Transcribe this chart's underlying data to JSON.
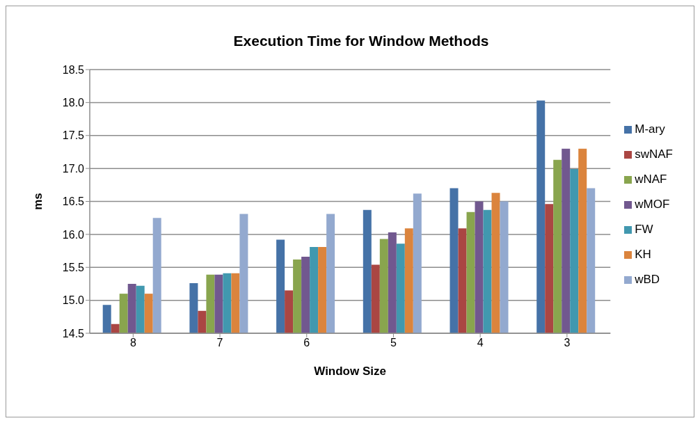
{
  "chart_data": {
    "type": "bar",
    "title": "Execution Time for Window Methods",
    "xlabel": "Window Size",
    "ylabel": "ms",
    "categories": [
      "8",
      "7",
      "6",
      "5",
      "4",
      "3"
    ],
    "series": [
      {
        "name": "M-ary",
        "color": "#4572a7",
        "values": [
          14.93,
          15.26,
          15.92,
          16.37,
          16.7,
          18.03
        ]
      },
      {
        "name": "swNAF",
        "color": "#aa4643",
        "values": [
          14.64,
          14.84,
          15.15,
          15.54,
          16.09,
          16.46
        ]
      },
      {
        "name": "wNAF",
        "color": "#89a54e",
        "values": [
          15.1,
          15.39,
          15.62,
          15.93,
          16.34,
          17.13
        ]
      },
      {
        "name": "wMOF",
        "color": "#71588f",
        "values": [
          15.25,
          15.39,
          15.66,
          16.03,
          16.5,
          17.3
        ]
      },
      {
        "name": "FW",
        "color": "#4198af",
        "values": [
          15.22,
          15.41,
          15.81,
          15.86,
          16.37,
          16.99
        ]
      },
      {
        "name": "KH",
        "color": "#db843d",
        "values": [
          15.1,
          15.41,
          15.81,
          16.09,
          16.63,
          17.3
        ]
      },
      {
        "name": "wBD",
        "color": "#93a9cf",
        "values": [
          16.25,
          16.31,
          16.31,
          16.62,
          16.5,
          16.7
        ]
      }
    ],
    "ylim": [
      14.5,
      18.5
    ],
    "yticks": [
      {
        "value": 14.5,
        "label": "14.5"
      },
      {
        "value": 15,
        "label": "15.0"
      },
      {
        "value": 15.5,
        "label": "15.5"
      },
      {
        "value": 16,
        "label": "16.0"
      },
      {
        "value": 16.5,
        "label": "16.5"
      },
      {
        "value": 17,
        "label": "17.0"
      },
      {
        "value": 17.5,
        "label": "17.5"
      },
      {
        "value": 18,
        "label": "18.0"
      },
      {
        "value": 18.5,
        "label": "18.5"
      }
    ],
    "grid": "y",
    "legend": "right"
  }
}
